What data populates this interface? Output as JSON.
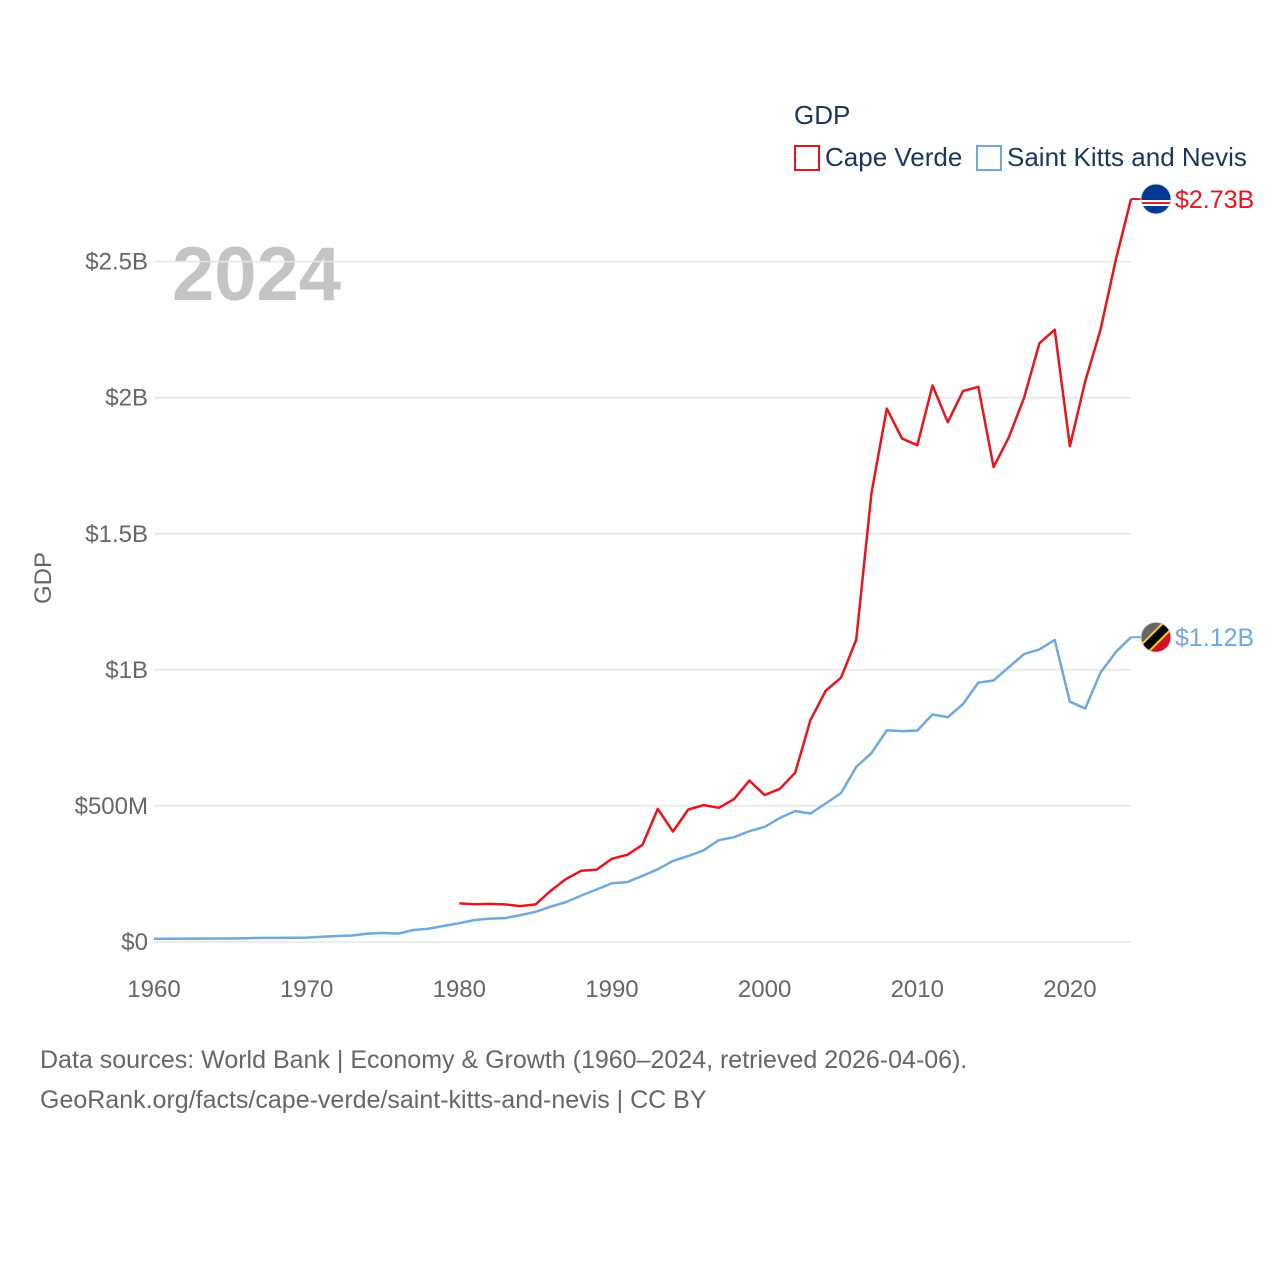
{
  "chart_data": {
    "type": "line",
    "big_year": "2024",
    "ylabel": "GDP",
    "legend_title": "GDP",
    "xlim": [
      1960,
      2024
    ],
    "ylim": [
      0,
      2800000000
    ],
    "x_ticks": [
      1960,
      1970,
      1980,
      1990,
      2000,
      2010,
      2020
    ],
    "x_tick_labels": [
      "1960",
      "1970",
      "1980",
      "1990",
      "2000",
      "2010",
      "2020"
    ],
    "y_ticks": [
      0,
      500000000,
      1000000000,
      1500000000,
      2000000000,
      2500000000
    ],
    "y_tick_labels": [
      "$0",
      "$500M",
      "$1B",
      "$1.5B",
      "$2B",
      "$2.5B"
    ],
    "series": [
      {
        "name": "Cape Verde",
        "color": "#e8151b",
        "end_label": "$2.73B",
        "flag_icon": "cape-verde-flag-icon",
        "x": [
          1980,
          1981,
          1982,
          1983,
          1984,
          1985,
          1986,
          1987,
          1988,
          1989,
          1990,
          1991,
          1992,
          1993,
          1994,
          1995,
          1996,
          1997,
          1998,
          1999,
          2000,
          2001,
          2002,
          2003,
          2004,
          2005,
          2006,
          2007,
          2008,
          2009,
          2010,
          2011,
          2012,
          2013,
          2014,
          2015,
          2016,
          2017,
          2018,
          2019,
          2020,
          2021,
          2022,
          2023,
          2024
        ],
        "values": [
          142000000,
          139000000,
          140000000,
          138000000,
          132000000,
          138000000,
          189000000,
          232000000,
          262000000,
          266000000,
          306000000,
          320000000,
          357000000,
          489000000,
          406000000,
          487000000,
          503000000,
          493000000,
          525000000,
          593000000,
          540000000,
          563000000,
          622000000,
          815000000,
          923000000,
          971000000,
          1110000000,
          1650000000,
          1960000000,
          1850000000,
          1825000000,
          2045000000,
          1910000000,
          2025000000,
          2040000000,
          1745000000,
          1855000000,
          2000000000,
          2200000000,
          2250000000,
          1822000000,
          2060000000,
          2250000000,
          2505000000,
          2730000000
        ]
      },
      {
        "name": "Saint Kitts and Nevis",
        "color": "#6fa8dc",
        "end_label": "$1.12B",
        "flag_icon": "saint-kitts-and-nevis-flag-icon",
        "x": [
          1960,
          1961,
          1962,
          1963,
          1964,
          1965,
          1966,
          1967,
          1968,
          1969,
          1970,
          1971,
          1972,
          1973,
          1974,
          1975,
          1976,
          1977,
          1978,
          1979,
          1980,
          1981,
          1982,
          1983,
          1984,
          1985,
          1986,
          1987,
          1988,
          1989,
          1990,
          1991,
          1992,
          1993,
          1994,
          1995,
          1996,
          1997,
          1998,
          1999,
          2000,
          2001,
          2002,
          2003,
          2004,
          2005,
          2006,
          2007,
          2008,
          2009,
          2010,
          2011,
          2012,
          2013,
          2014,
          2015,
          2016,
          2017,
          2018,
          2019,
          2020,
          2021,
          2022,
          2023,
          2024
        ],
        "values": [
          12000000,
          12000000,
          12500000,
          12500000,
          13000000,
          13000000,
          14000000,
          15000000,
          15000000,
          15500000,
          16000000,
          19000000,
          22000000,
          24000000,
          31000000,
          33000000,
          31000000,
          44000000,
          49000000,
          59000000,
          69000000,
          81000000,
          86000000,
          88000000,
          99000000,
          111000000,
          130000000,
          147000000,
          171000000,
          193000000,
          216000000,
          220000000,
          243000000,
          267000000,
          298000000,
          316000000,
          337000000,
          374000000,
          385000000,
          407000000,
          423000000,
          456000000,
          481000000,
          472000000,
          509000000,
          547000000,
          643000000,
          694000000,
          778000000,
          775000000,
          777000000,
          836000000,
          826000000,
          875000000,
          953000000,
          961000000,
          1010000000,
          1058000000,
          1075000000,
          1110000000,
          883000000,
          858000000,
          990000000,
          1065000000,
          1120000000
        ]
      }
    ]
  },
  "footer": {
    "line1": "Data sources: World Bank | Economy & Growth (1960–2024, retrieved 2026-04-06).",
    "line2": "GeoRank.org/facts/cape-verde/saint-kitts-and-nevis | CC BY"
  }
}
